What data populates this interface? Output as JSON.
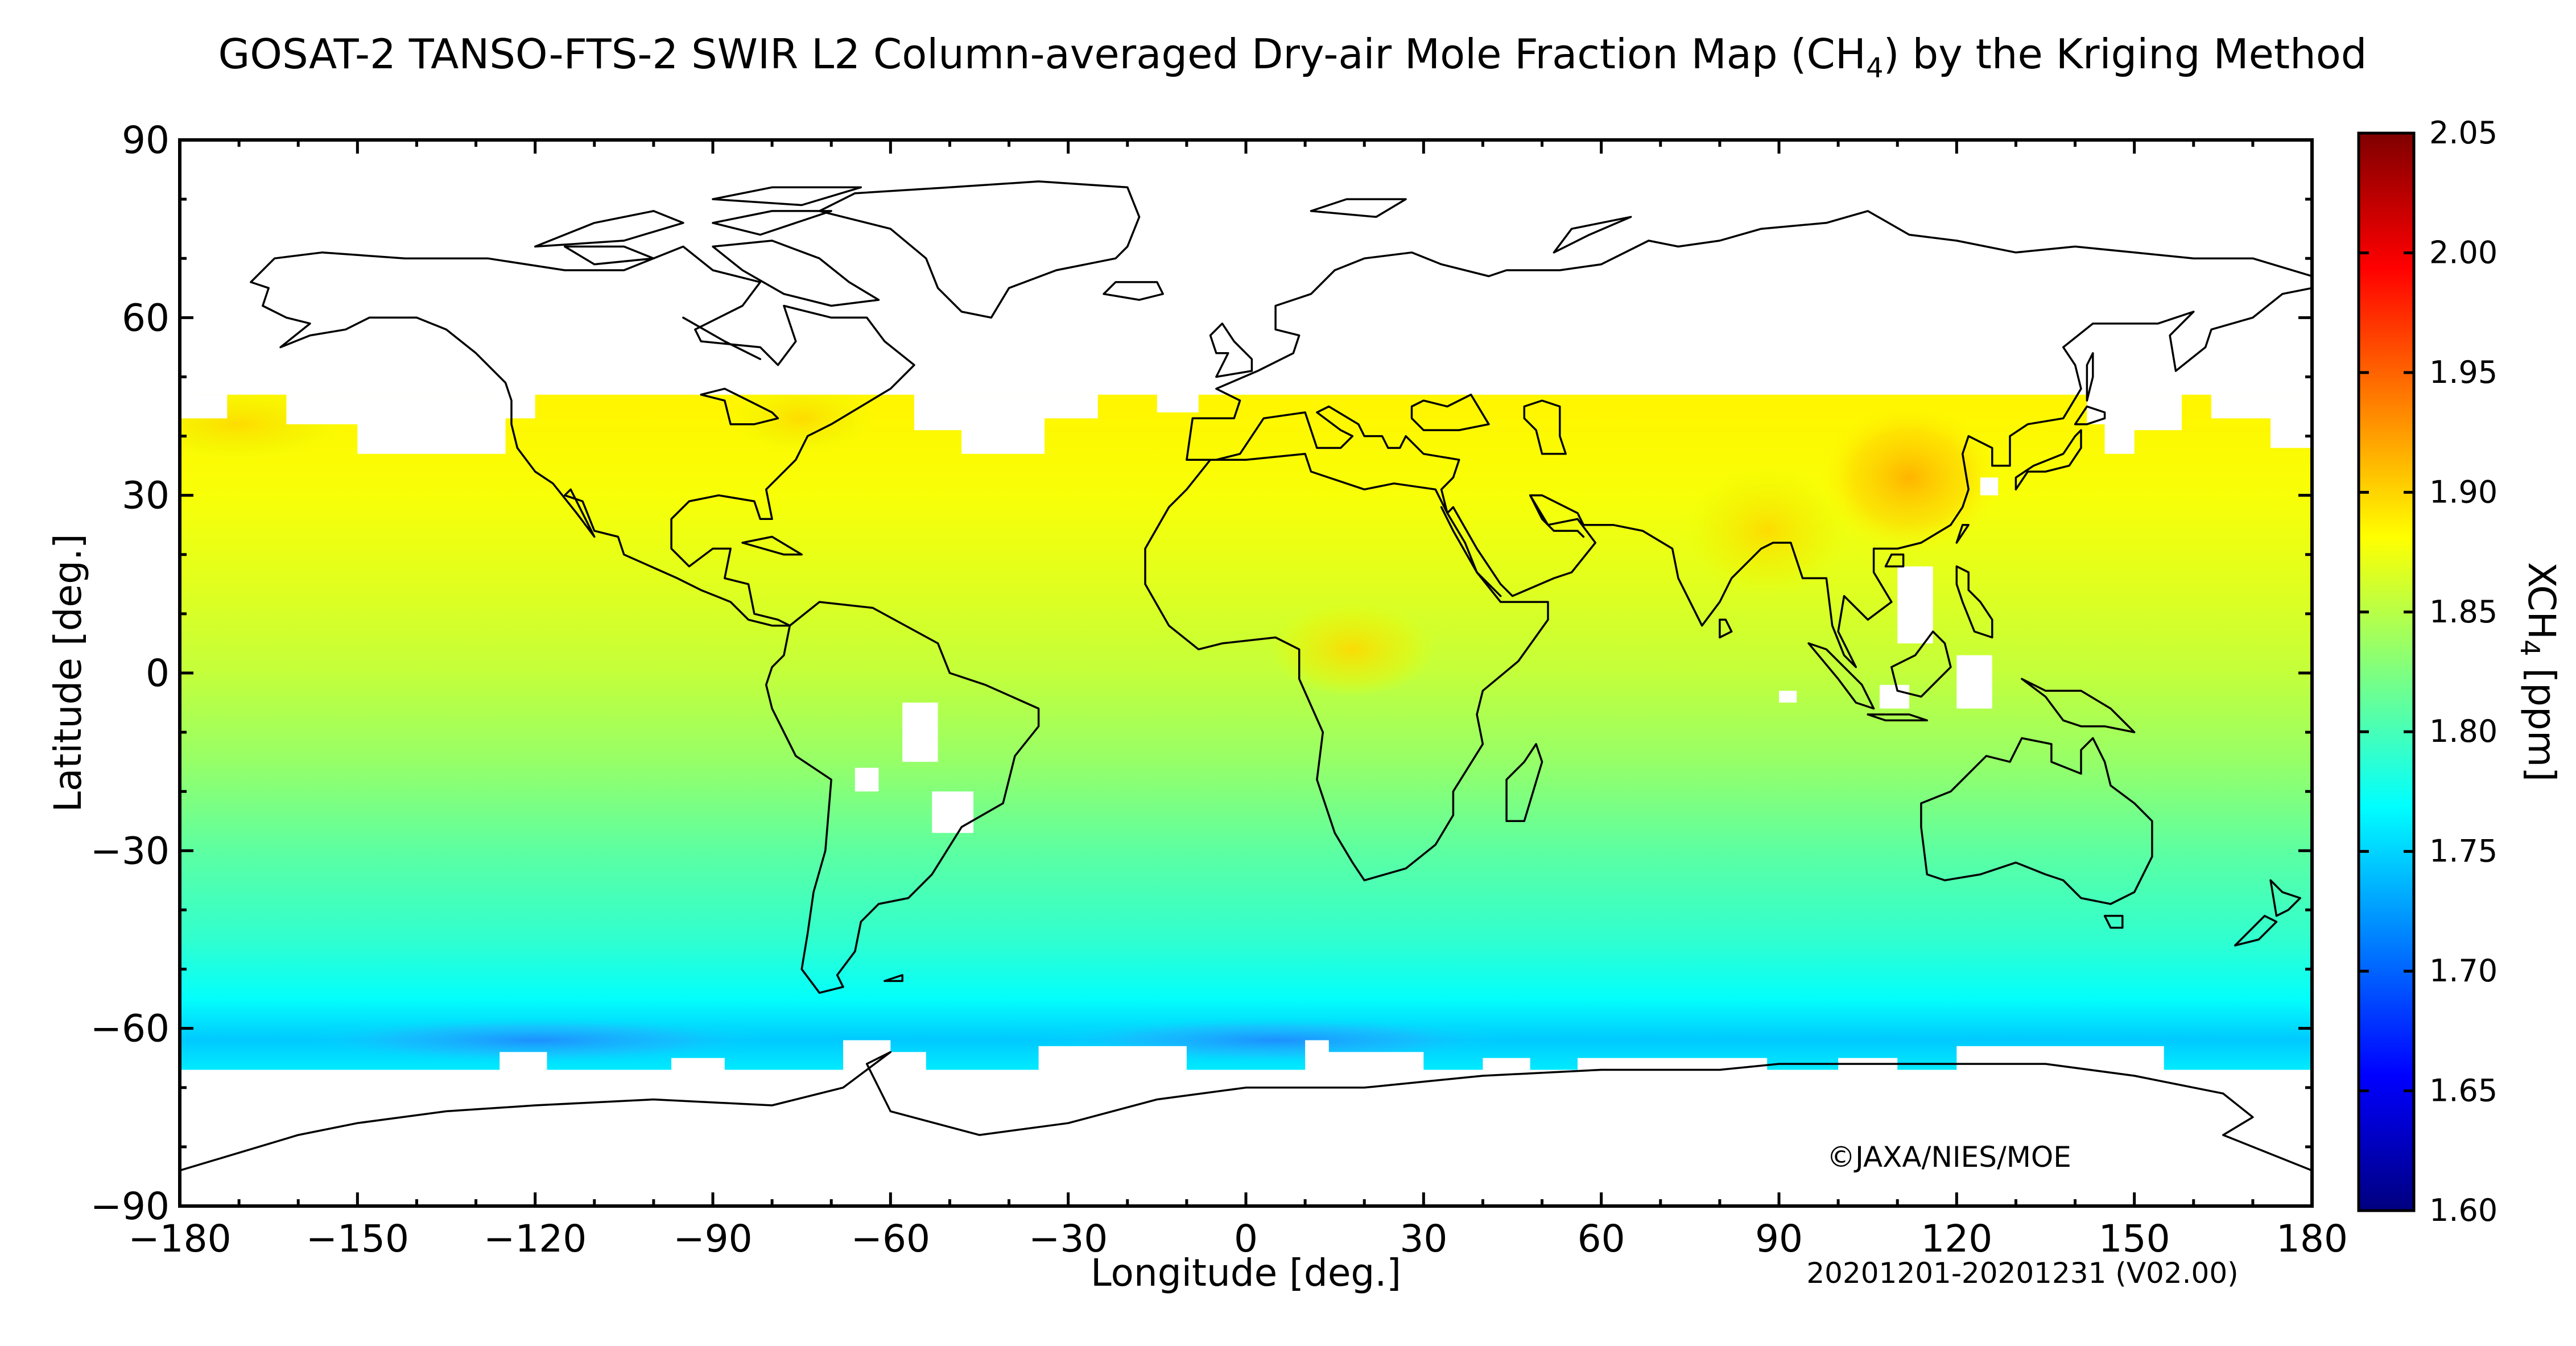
{
  "title_main": "GOSAT-2 TANSO-FTS-2 SWIR L2 Column-averaged Dry-air Mole Fraction Map (CH",
  "title_sub": "4",
  "title_end": ") by the Kriging Method",
  "copyright": "©JAXA/NIES/MOE",
  "period": "20201201-20201231 (V02.00)",
  "colorbar": {
    "label_main": "XCH",
    "label_sub": "4",
    "label_end": " [ppm]",
    "min": 1.6,
    "max": 2.05,
    "ticks": [
      "1.60",
      "1.65",
      "1.70",
      "1.75",
      "1.80",
      "1.85",
      "1.90",
      "1.95",
      "2.00",
      "2.05"
    ],
    "colors": [
      "#00007f",
      "#0000ff",
      "#007fff",
      "#00ffff",
      "#7fff7f",
      "#ffff00",
      "#ff7f00",
      "#ff0000",
      "#7f0000"
    ]
  },
  "chart_data": {
    "type": "heatmap",
    "xlabel": "Longitude [deg.]",
    "ylabel": "Latitude [deg.]",
    "xlim": [
      -180,
      180
    ],
    "ylim": [
      -90,
      90
    ],
    "xticks": [
      "−180",
      "−150",
      "−120",
      "−90",
      "−60",
      "−30",
      "0",
      "30",
      "60",
      "90",
      "120",
      "150",
      "180"
    ],
    "yticks": [
      "−90",
      "−60",
      "−30",
      "0",
      "30",
      "60",
      "90"
    ],
    "value_range_ppm": [
      1.6,
      2.05
    ],
    "latitude_profile": [
      {
        "lat": 45,
        "xch4": 1.885
      },
      {
        "lat": 30,
        "xch4": 1.878
      },
      {
        "lat": 15,
        "xch4": 1.868
      },
      {
        "lat": 0,
        "xch4": 1.855
      },
      {
        "lat": -15,
        "xch4": 1.835
      },
      {
        "lat": -30,
        "xch4": 1.81
      },
      {
        "lat": -45,
        "xch4": 1.79
      },
      {
        "lat": -55,
        "xch4": 1.77
      },
      {
        "lat": -62,
        "xch4": 1.745
      },
      {
        "lat": -67,
        "xch4": 1.76
      }
    ],
    "regional_highs": [
      {
        "region": "East China",
        "lon": 112,
        "lat": 33,
        "xch4": 1.935
      },
      {
        "region": "India / Bangladesh",
        "lon": 88,
        "lat": 24,
        "xch4": 1.91
      },
      {
        "region": "Central Africa",
        "lon": 18,
        "lat": 4,
        "xch4": 1.905
      },
      {
        "region": "North Pacific",
        "lon": -170,
        "lat": 42,
        "xch4": 1.91
      },
      {
        "region": "Eastern North America",
        "lon": -75,
        "lat": 43,
        "xch4": 1.9
      }
    ],
    "regional_lows": [
      {
        "region": "Southern Ocean (Pacific)",
        "lon": -120,
        "lat": -62,
        "xch4": 1.74
      },
      {
        "region": "Southern Ocean (Drake/Atlantic)",
        "lon": 5,
        "lat": -62,
        "xch4": 1.735
      }
    ],
    "no_data_regions": [
      "lat > 47",
      "lat < -67",
      "South America interior",
      "Maritime Continent gaps"
    ]
  }
}
